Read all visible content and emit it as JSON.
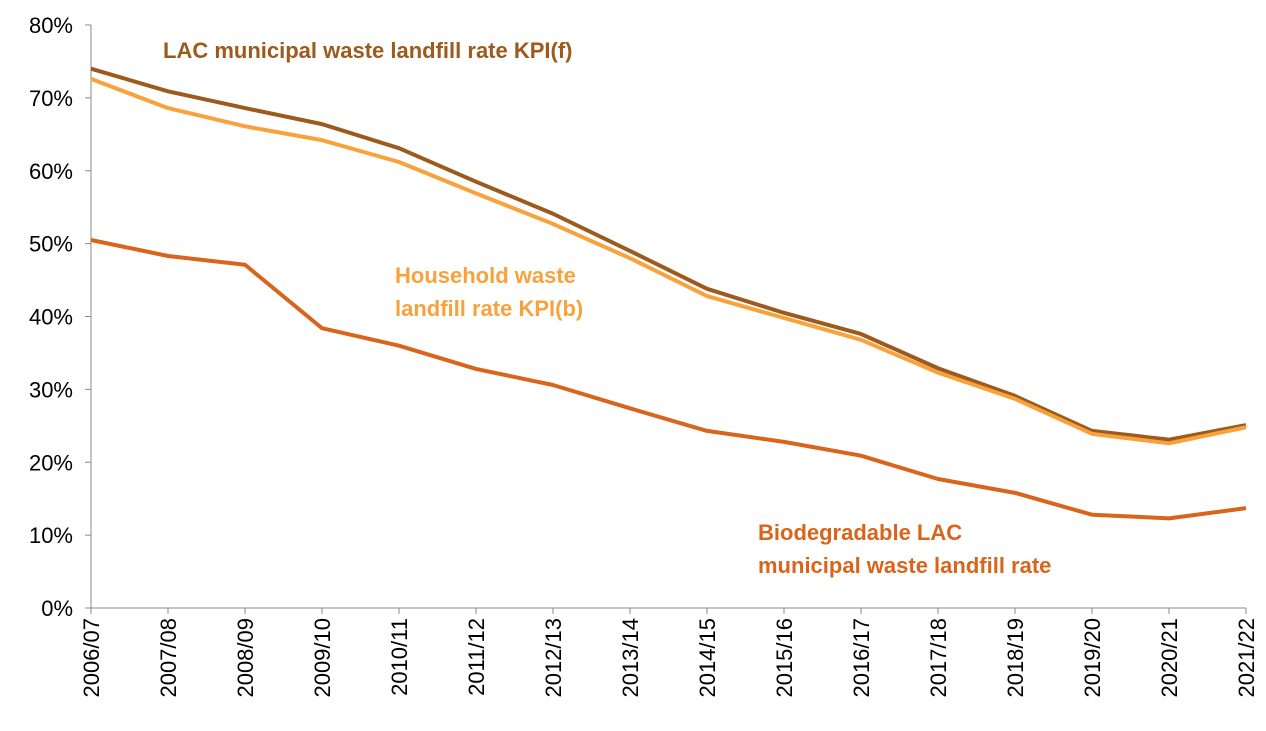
{
  "chart_data": {
    "type": "line",
    "categories": [
      "2006/07",
      "2007/08",
      "2008/09",
      "2009/10",
      "2010/11",
      "2011/12",
      "2012/13",
      "2013/14",
      "2014/15",
      "2015/16",
      "2016/17",
      "2017/18",
      "2018/19",
      "2019/20",
      "2020/21",
      "2021/22"
    ],
    "series": [
      {
        "color": "#9c5a1c",
        "values": [
          74.0,
          70.9,
          68.6,
          66.4,
          63.1,
          58.5,
          54.1,
          49.0,
          43.8,
          40.5,
          37.6,
          32.9,
          29.1,
          24.3,
          23.1,
          25.1
        ]
      },
      {
        "color": "#f9a23c",
        "values": [
          72.6,
          68.6,
          66.1,
          64.2,
          61.2,
          56.9,
          52.7,
          48.0,
          42.8,
          39.8,
          36.8,
          32.3,
          28.7,
          23.9,
          22.6,
          24.8
        ]
      },
      {
        "color": "#d9641c",
        "values": [
          50.5,
          48.3,
          47.1,
          38.4,
          36.0,
          32.8,
          30.6,
          27.4,
          24.3,
          22.8,
          20.9,
          17.7,
          15.8,
          12.8,
          12.3,
          13.7
        ]
      }
    ],
    "annotations": [
      {
        "lines": [
          "LAC municipal waste landfill rate KPI(f)"
        ],
        "color": "#9c5a1c"
      },
      {
        "lines": [
          "Household waste",
          "landfill rate KPI(b)"
        ],
        "color": "#f9a23c"
      },
      {
        "lines": [
          "Biodegradable LAC",
          "municipal waste landfill rate"
        ],
        "color": "#d9641c"
      }
    ],
    "ylim": [
      0,
      80
    ],
    "yticks": [
      {
        "value": 0,
        "label": "0%"
      },
      {
        "value": 10,
        "label": "10%"
      },
      {
        "value": 20,
        "label": "20%"
      },
      {
        "value": 30,
        "label": "30%"
      },
      {
        "value": 40,
        "label": "40%"
      },
      {
        "value": 50,
        "label": "50%"
      },
      {
        "value": 60,
        "label": "60%"
      },
      {
        "value": 70,
        "label": "70%"
      },
      {
        "value": 80,
        "label": "80%"
      }
    ],
    "grid": false
  }
}
